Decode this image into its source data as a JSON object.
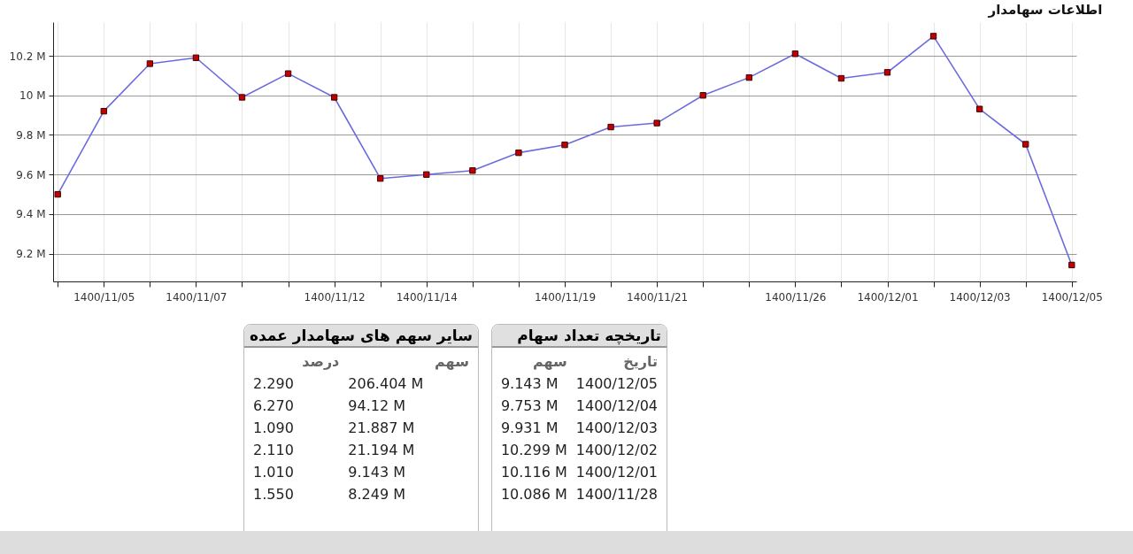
{
  "chart_data": [
    {
      "type": "line",
      "title": "اطلاعات سهامدار",
      "categories": [
        null,
        "1400/11/05",
        null,
        "1400/11/07",
        null,
        null,
        "1400/11/12",
        null,
        "1400/11/14",
        null,
        null,
        "1400/11/19",
        null,
        "1400/11/21",
        null,
        null,
        "1400/11/26",
        null,
        "1400/12/01",
        null,
        "1400/12/03",
        null,
        "1400/12/05"
      ],
      "series": [
        {
          "color": "#6b6be0",
          "values": [
            9.5,
            9.92,
            10.16,
            10.19,
            9.99,
            10.11,
            9.99,
            9.58,
            9.6,
            9.62,
            9.71,
            9.75,
            9.84,
            9.86,
            10.0,
            10.09,
            10.21,
            10.086,
            10.116,
            10.299,
            9.931,
            9.753,
            9.143
          ]
        }
      ],
      "ylim": [
        9.06,
        10.37
      ],
      "yticks": [
        {
          "value": 9.2,
          "label": "9.2 M"
        },
        {
          "value": 9.4,
          "label": "9.4 M"
        },
        {
          "value": 9.6,
          "label": "9.6 M"
        },
        {
          "value": 9.8,
          "label": "9.8 M"
        },
        {
          "value": 10,
          "label": "10 M"
        },
        {
          "value": 10.2,
          "label": "10.2 M"
        }
      ],
      "grid": true,
      "marker": "square"
    },
    {
      "type": "other",
      "title": "تاریخچه تعداد سهام",
      "annotations": [
        "تاریخ",
        "سهم",
        "1400/12/05",
        "9.143 M",
        "1400/12/04",
        "9.753 M",
        "1400/12/03",
        "9.931 M",
        "1400/12/02",
        "10.299 M",
        "1400/12/01",
        "10.116 M",
        "1400/11/28",
        "10.086 M"
      ]
    },
    {
      "type": "other",
      "title": "سایر سهم های سهامدار عمده",
      "annotations": [
        "سهم",
        "درصد",
        "206.404 M",
        "2.290",
        "94.12 M",
        "6.270",
        "21.887 M",
        "1.090",
        "21.194 M",
        "2.110",
        "9.143 M",
        "1.010",
        "8.249 M",
        "1.550"
      ]
    }
  ]
}
